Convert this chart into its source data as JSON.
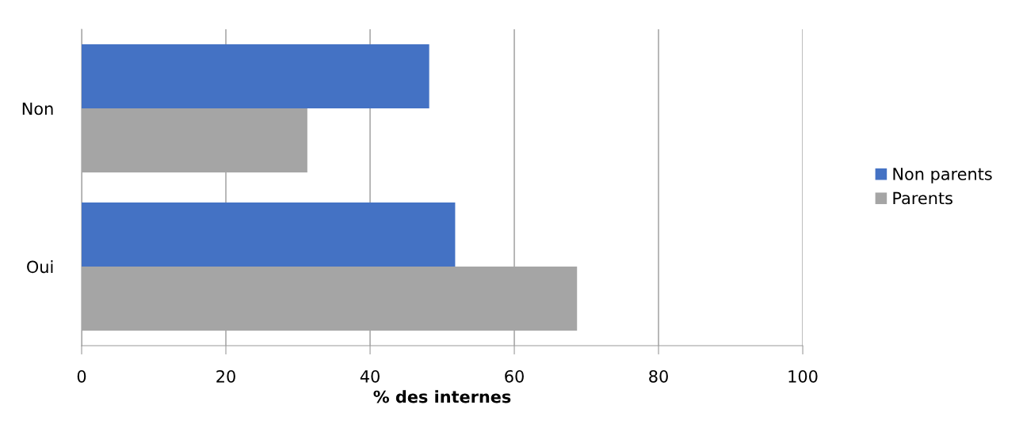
{
  "chart_data": {
    "type": "bar",
    "orientation": "horizontal",
    "xlabel": "% des internes",
    "categories": [
      "Non",
      "Oui"
    ],
    "series": [
      {
        "name": "Non parents",
        "color": "#4472c4",
        "values": [
          48.2,
          51.8
        ]
      },
      {
        "name": "Parents",
        "color": "#a5a5a5",
        "values": [
          31.3,
          68.7
        ]
      }
    ],
    "xlim": [
      0,
      100
    ],
    "xticks": [
      0,
      20,
      40,
      60,
      80,
      100
    ],
    "grid": "x",
    "legend": "right"
  }
}
